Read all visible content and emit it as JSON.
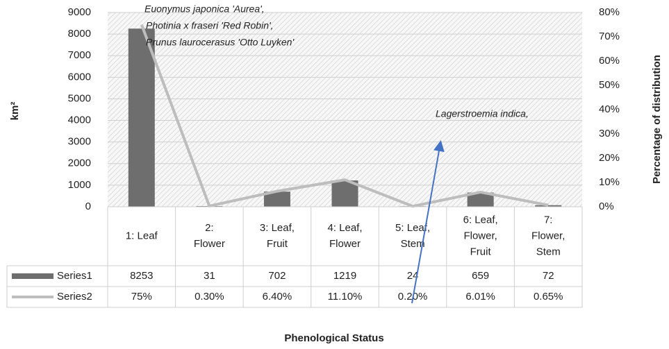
{
  "chart_data": {
    "type": "bar-line",
    "ylabel": "km²",
    "y2label": "Percentage of distribution",
    "xlabel": "Phenological Status",
    "categories": [
      [
        "1: Leaf"
      ],
      [
        "2:",
        "Flower"
      ],
      [
        "3: Leaf,",
        "Fruit"
      ],
      [
        "4: Leaf,",
        "Flower"
      ],
      [
        "5: Leaf,",
        "Stem"
      ],
      [
        "6: Leaf,",
        "Flower,",
        "Fruit"
      ],
      [
        "7:",
        "Flower,",
        "Stem"
      ]
    ],
    "series": [
      {
        "name": "Series1",
        "type": "bar",
        "color": "#6e6e6e",
        "values": [
          8253,
          31,
          702,
          1219,
          24,
          659,
          72
        ]
      },
      {
        "name": "Series2",
        "type": "line",
        "axis": "y2",
        "color": "#bdbdbd",
        "values": [
          75,
          0.3,
          6.4,
          11.1,
          0.2,
          6.01,
          0.65
        ],
        "value_labels": [
          "75%",
          "0.30%",
          "6.40%",
          "11.10%",
          "0.20%",
          "6.01%",
          "0.65%"
        ]
      }
    ],
    "ylim": [
      0,
      9000
    ],
    "yticks": [
      0,
      1000,
      2000,
      3000,
      4000,
      5000,
      6000,
      7000,
      8000,
      9000
    ],
    "y2lim": [
      0,
      80
    ],
    "y2ticks": [
      {
        "value": 0,
        "label": "0%"
      },
      {
        "value": 10,
        "label": "10%"
      },
      {
        "value": 20,
        "label": "20%"
      },
      {
        "value": 30,
        "label": "30%"
      },
      {
        "value": 40,
        "label": "40%"
      },
      {
        "value": 50,
        "label": "50%"
      },
      {
        "value": 60,
        "label": "60%"
      },
      {
        "value": 70,
        "label": "70%"
      },
      {
        "value": 80,
        "label": "80%"
      }
    ],
    "grid": true,
    "annotations": [
      {
        "lines": [
          "Euonymus japonica 'Aurea',",
          "Photinia x fraseri 'Red Robin',",
          "Prunus laurocerasus 'Otto Luyken'"
        ]
      },
      {
        "lines": [
          "Lagerstroemia indica,"
        ]
      }
    ]
  }
}
